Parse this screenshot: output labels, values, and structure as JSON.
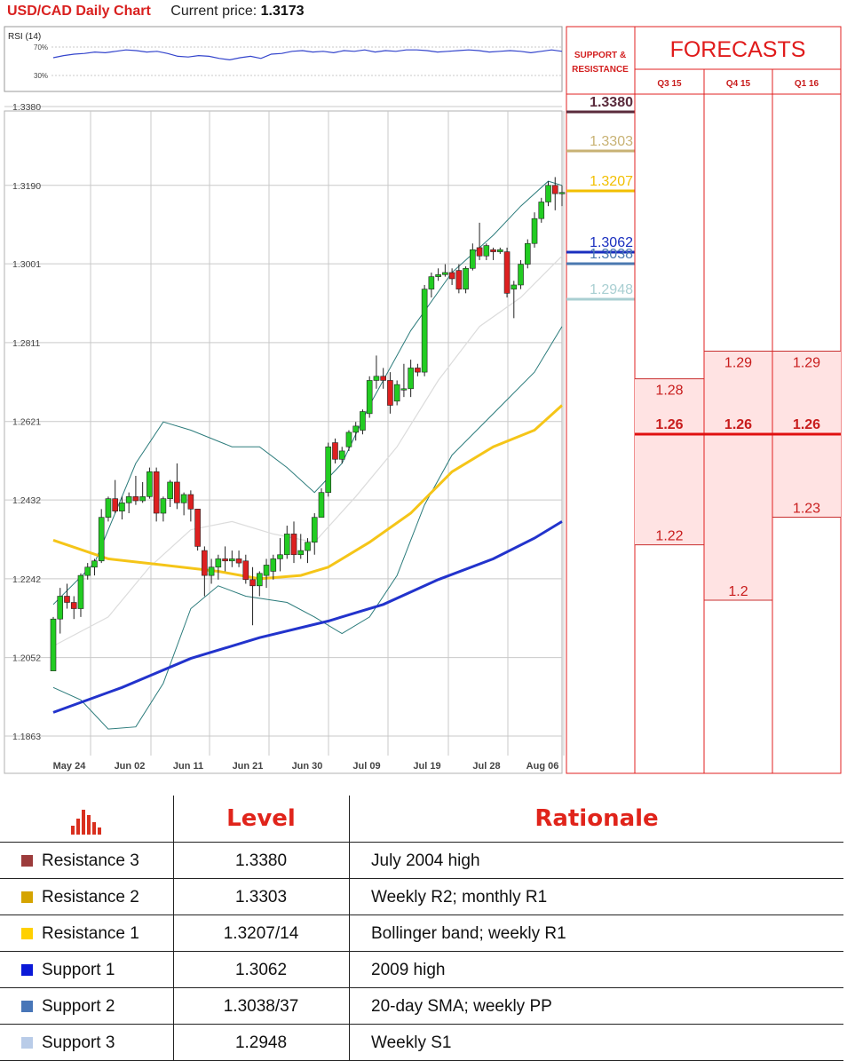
{
  "header": {
    "title": "USD/CAD Daily Chart",
    "price_label": "Current price:",
    "price_value": "1.3173"
  },
  "rsi": {
    "label": "RSI (14)",
    "levels": [
      "70%",
      "30%"
    ],
    "values": [
      55,
      58,
      60,
      61,
      63,
      62,
      64,
      66,
      65,
      63,
      64,
      61,
      57,
      56,
      58,
      57,
      54,
      52,
      55,
      57,
      54,
      60,
      61,
      64,
      65,
      63,
      64,
      62,
      65,
      64,
      66,
      63,
      65,
      64,
      66,
      66,
      65,
      63,
      64,
      65,
      66,
      65,
      63,
      64,
      65,
      64,
      62,
      64,
      66,
      64
    ]
  },
  "chart_data": {
    "type": "candlestick",
    "title": "USD/CAD Daily Chart",
    "y_ticks": [
      "1.3380",
      "1.3190",
      "1.3001",
      "1.2811",
      "1.2621",
      "1.2432",
      "1.2242",
      "1.2052",
      "1.1863"
    ],
    "x_ticks": [
      "May 24",
      "Jun 02",
      "Jun 11",
      "Jun 21",
      "Jun 30",
      "Jul 09",
      "Jul 19",
      "Jul 28",
      "Aug 06"
    ],
    "ylim": [
      1.1863,
      1.338
    ],
    "candles": [
      {
        "o": 1.202,
        "h": 1.215,
        "l": 1.202,
        "c": 1.2145
      },
      {
        "o": 1.2145,
        "h": 1.222,
        "l": 1.211,
        "c": 1.22
      },
      {
        "o": 1.22,
        "h": 1.223,
        "l": 1.217,
        "c": 1.2185
      },
      {
        "o": 1.2185,
        "h": 1.22,
        "l": 1.2145,
        "c": 1.217
      },
      {
        "o": 1.217,
        "h": 1.2255,
        "l": 1.215,
        "c": 1.225
      },
      {
        "o": 1.225,
        "h": 1.228,
        "l": 1.224,
        "c": 1.227
      },
      {
        "o": 1.227,
        "h": 1.229,
        "l": 1.225,
        "c": 1.2285
      },
      {
        "o": 1.2285,
        "h": 1.241,
        "l": 1.228,
        "c": 1.239
      },
      {
        "o": 1.239,
        "h": 1.244,
        "l": 1.238,
        "c": 1.2435
      },
      {
        "o": 1.2435,
        "h": 1.248,
        "l": 1.24,
        "c": 1.2405
      },
      {
        "o": 1.2405,
        "h": 1.244,
        "l": 1.2385,
        "c": 1.2425
      },
      {
        "o": 1.2425,
        "h": 1.245,
        "l": 1.24,
        "c": 1.244
      },
      {
        "o": 1.244,
        "h": 1.249,
        "l": 1.242,
        "c": 1.243
      },
      {
        "o": 1.243,
        "h": 1.2475,
        "l": 1.2425,
        "c": 1.244
      },
      {
        "o": 1.244,
        "h": 1.251,
        "l": 1.2435,
        "c": 1.25
      },
      {
        "o": 1.25,
        "h": 1.251,
        "l": 1.238,
        "c": 1.24
      },
      {
        "o": 1.24,
        "h": 1.244,
        "l": 1.238,
        "c": 1.2435
      },
      {
        "o": 1.2435,
        "h": 1.248,
        "l": 1.2415,
        "c": 1.2475
      },
      {
        "o": 1.2475,
        "h": 1.252,
        "l": 1.241,
        "c": 1.2425
      },
      {
        "o": 1.2425,
        "h": 1.245,
        "l": 1.2395,
        "c": 1.2445
      },
      {
        "o": 1.2445,
        "h": 1.2455,
        "l": 1.238,
        "c": 1.241
      },
      {
        "o": 1.241,
        "h": 1.241,
        "l": 1.231,
        "c": 1.232
      },
      {
        "o": 1.231,
        "h": 1.232,
        "l": 1.22,
        "c": 1.225
      },
      {
        "o": 1.225,
        "h": 1.229,
        "l": 1.223,
        "c": 1.227
      },
      {
        "o": 1.227,
        "h": 1.23,
        "l": 1.224,
        "c": 1.229
      },
      {
        "o": 1.229,
        "h": 1.232,
        "l": 1.226,
        "c": 1.2285
      },
      {
        "o": 1.2285,
        "h": 1.231,
        "l": 1.227,
        "c": 1.229
      },
      {
        "o": 1.229,
        "h": 1.231,
        "l": 1.227,
        "c": 1.228
      },
      {
        "o": 1.2285,
        "h": 1.23,
        "l": 1.223,
        "c": 1.224
      },
      {
        "o": 1.224,
        "h": 1.227,
        "l": 1.213,
        "c": 1.2225
      },
      {
        "o": 1.2225,
        "h": 1.226,
        "l": 1.22,
        "c": 1.2255
      },
      {
        "o": 1.225,
        "h": 1.229,
        "l": 1.222,
        "c": 1.2275
      },
      {
        "o": 1.226,
        "h": 1.23,
        "l": 1.224,
        "c": 1.229
      },
      {
        "o": 1.229,
        "h": 1.234,
        "l": 1.226,
        "c": 1.23
      },
      {
        "o": 1.23,
        "h": 1.237,
        "l": 1.229,
        "c": 1.235
      },
      {
        "o": 1.235,
        "h": 1.238,
        "l": 1.228,
        "c": 1.23
      },
      {
        "o": 1.23,
        "h": 1.235,
        "l": 1.229,
        "c": 1.231
      },
      {
        "o": 1.231,
        "h": 1.234,
        "l": 1.228,
        "c": 1.233
      },
      {
        "o": 1.233,
        "h": 1.24,
        "l": 1.23,
        "c": 1.239
      },
      {
        "o": 1.239,
        "h": 1.246,
        "l": 1.239,
        "c": 1.245
      },
      {
        "o": 1.245,
        "h": 1.257,
        "l": 1.244,
        "c": 1.256
      },
      {
        "o": 1.257,
        "h": 1.258,
        "l": 1.252,
        "c": 1.253
      },
      {
        "o": 1.253,
        "h": 1.256,
        "l": 1.252,
        "c": 1.255
      },
      {
        "o": 1.256,
        "h": 1.26,
        "l": 1.255,
        "c": 1.2595
      },
      {
        "o": 1.2595,
        "h": 1.262,
        "l": 1.2575,
        "c": 1.261
      },
      {
        "o": 1.26,
        "h": 1.265,
        "l": 1.259,
        "c": 1.2645
      },
      {
        "o": 1.264,
        "h": 1.273,
        "l": 1.263,
        "c": 1.272
      },
      {
        "o": 1.272,
        "h": 1.278,
        "l": 1.27,
        "c": 1.273
      },
      {
        "o": 1.273,
        "h": 1.275,
        "l": 1.27,
        "c": 1.272
      },
      {
        "o": 1.272,
        "h": 1.274,
        "l": 1.264,
        "c": 1.266
      },
      {
        "o": 1.267,
        "h": 1.272,
        "l": 1.266,
        "c": 1.271
      },
      {
        "o": 1.27,
        "h": 1.276,
        "l": 1.268,
        "c": 1.27
      },
      {
        "o": 1.27,
        "h": 1.277,
        "l": 1.268,
        "c": 1.275
      },
      {
        "o": 1.275,
        "h": 1.276,
        "l": 1.273,
        "c": 1.274
      },
      {
        "o": 1.274,
        "h": 1.295,
        "l": 1.273,
        "c": 1.294
      },
      {
        "o": 1.294,
        "h": 1.298,
        "l": 1.292,
        "c": 1.297
      },
      {
        "o": 1.297,
        "h": 1.299,
        "l": 1.296,
        "c": 1.2975
      },
      {
        "o": 1.2975,
        "h": 1.3,
        "l": 1.297,
        "c": 1.298
      },
      {
        "o": 1.298,
        "h": 1.299,
        "l": 1.295,
        "c": 1.2965
      },
      {
        "o": 1.2985,
        "h": 1.3,
        "l": 1.293,
        "c": 1.294
      },
      {
        "o": 1.294,
        "h": 1.2995,
        "l": 1.293,
        "c": 1.299
      },
      {
        "o": 1.299,
        "h": 1.305,
        "l": 1.2985,
        "c": 1.3035
      },
      {
        "o": 1.304,
        "h": 1.31,
        "l": 1.301,
        "c": 1.302
      },
      {
        "o": 1.302,
        "h": 1.305,
        "l": 1.301,
        "c": 1.3045
      },
      {
        "o": 1.3035,
        "h": 1.304,
        "l": 1.301,
        "c": 1.303
      },
      {
        "o": 1.303,
        "h": 1.304,
        "l": 1.3025,
        "c": 1.3035
      },
      {
        "o": 1.303,
        "h": 1.304,
        "l": 1.292,
        "c": 1.293
      },
      {
        "o": 1.294,
        "h": 1.296,
        "l": 1.287,
        "c": 1.295
      },
      {
        "o": 1.295,
        "h": 1.301,
        "l": 1.294,
        "c": 1.3
      },
      {
        "o": 1.3,
        "h": 1.306,
        "l": 1.299,
        "c": 1.305
      },
      {
        "o": 1.305,
        "h": 1.3125,
        "l": 1.304,
        "c": 1.311
      },
      {
        "o": 1.311,
        "h": 1.316,
        "l": 1.31,
        "c": 1.315
      },
      {
        "o": 1.315,
        "h": 1.32,
        "l": 1.314,
        "c": 1.319
      },
      {
        "o": 1.319,
        "h": 1.321,
        "l": 1.313,
        "c": 1.317
      },
      {
        "o": 1.317,
        "h": 1.319,
        "l": 1.314,
        "c": 1.3173
      }
    ],
    "sma_yellow": [
      [
        0,
        1.2335
      ],
      [
        8,
        1.229
      ],
      [
        16,
        1.2275
      ],
      [
        24,
        1.226
      ],
      [
        30,
        1.2242
      ],
      [
        36,
        1.225
      ],
      [
        40,
        1.227
      ],
      [
        46,
        1.233
      ],
      [
        52,
        1.24
      ],
      [
        58,
        1.25
      ],
      [
        64,
        1.256
      ],
      [
        70,
        1.26
      ],
      [
        74,
        1.266
      ]
    ],
    "sma_blue": [
      [
        0,
        1.192
      ],
      [
        10,
        1.198
      ],
      [
        20,
        1.205
      ],
      [
        30,
        1.21
      ],
      [
        40,
        1.214
      ],
      [
        48,
        1.218
      ],
      [
        56,
        1.224
      ],
      [
        64,
        1.229
      ],
      [
        70,
        1.234
      ],
      [
        74,
        1.238
      ]
    ],
    "bb_upper": [
      [
        0,
        1.218
      ],
      [
        6,
        1.228
      ],
      [
        12,
        1.252
      ],
      [
        16,
        1.262
      ],
      [
        20,
        1.26
      ],
      [
        26,
        1.256
      ],
      [
        30,
        1.256
      ],
      [
        34,
        1.251
      ],
      [
        38,
        1.245
      ],
      [
        42,
        1.252
      ],
      [
        46,
        1.266
      ],
      [
        52,
        1.284
      ],
      [
        58,
        1.298
      ],
      [
        64,
        1.307
      ],
      [
        68,
        1.314
      ],
      [
        72,
        1.32
      ],
      [
        74,
        1.319
      ]
    ],
    "bb_lower": [
      [
        0,
        1.198
      ],
      [
        4,
        1.195
      ],
      [
        8,
        1.188
      ],
      [
        12,
        1.1885
      ],
      [
        16,
        1.199
      ],
      [
        20,
        1.217
      ],
      [
        24,
        1.2225
      ],
      [
        28,
        1.22
      ],
      [
        34,
        1.2185
      ],
      [
        38,
        1.215
      ],
      [
        42,
        1.211
      ],
      [
        46,
        1.215
      ],
      [
        50,
        1.225
      ],
      [
        54,
        1.242
      ],
      [
        58,
        1.254
      ],
      [
        64,
        1.264
      ],
      [
        70,
        1.274
      ],
      [
        74,
        1.285
      ]
    ],
    "bb_mid": [
      [
        0,
        1.208
      ],
      [
        8,
        1.215
      ],
      [
        14,
        1.227
      ],
      [
        20,
        1.236
      ],
      [
        26,
        1.238
      ],
      [
        32,
        1.235
      ],
      [
        38,
        1.233
      ],
      [
        44,
        1.244
      ],
      [
        50,
        1.256
      ],
      [
        56,
        1.272
      ],
      [
        62,
        1.285
      ],
      [
        68,
        1.292
      ],
      [
        74,
        1.302
      ]
    ]
  },
  "support_resistance": {
    "header_line1": "SUPPORT &",
    "header_line2": "RESISTANCE",
    "levels": [
      {
        "value": 1.338,
        "label": "1.3380",
        "color": "#5a2b3c",
        "bold": true
      },
      {
        "value": 1.3303,
        "label": "1.3303",
        "color": "#c8b274",
        "bold": false
      },
      {
        "value": 1.3207,
        "label": "1.3207",
        "color": "#f2bf00",
        "bold": false
      },
      {
        "value": 1.3062,
        "label": "1.3062",
        "color": "#1a2fbf",
        "bold": false
      },
      {
        "value": 1.3038,
        "label": "1.3038",
        "color": "#4b79b0",
        "bold": false
      },
      {
        "value": 1.2948,
        "label": "1.2948",
        "color": "#a9cfd2",
        "bold": false
      }
    ]
  },
  "forecasts": {
    "title": "FORECASTS",
    "columns": [
      {
        "label": "Q3 15",
        "high": "1.28",
        "mid": "1.26",
        "low": "1.22",
        "high_v": 1.28,
        "low_v": 1.22
      },
      {
        "label": "Q4 15",
        "high": "1.29",
        "mid": "1.26",
        "low": "1.2",
        "high_v": 1.29,
        "low_v": 1.2
      },
      {
        "label": "Q1 16",
        "high": "1.29",
        "mid": "1.26",
        "low": "1.23",
        "high_v": 1.29,
        "low_v": 1.23
      }
    ],
    "mid_v": 1.26
  },
  "table": {
    "head_level": "Level",
    "head_rationale": "Rationale",
    "rows": [
      {
        "name": "Resistance 3",
        "level": "1.3380",
        "rationale": "July 2004 high",
        "color": "#9c3b3b"
      },
      {
        "name": "Resistance 2",
        "level": "1.3303",
        "rationale": "Weekly R2; monthly R1",
        "color": "#d5a400"
      },
      {
        "name": "Resistance 1",
        "level": "1.3207/14",
        "rationale": "Bollinger band; weekly R1",
        "color": "#ffd000"
      },
      {
        "name": "Support 1",
        "level": "1.3062",
        "rationale": "2009 high",
        "color": "#0b19d8"
      },
      {
        "name": "Support 2",
        "level": "1.3038/37",
        "rationale": "20-day SMA; weekly PP",
        "color": "#4876b8"
      },
      {
        "name": "Support 3",
        "level": "1.2948",
        "rationale": "Weekly S1",
        "color": "#b9cce8"
      }
    ]
  }
}
